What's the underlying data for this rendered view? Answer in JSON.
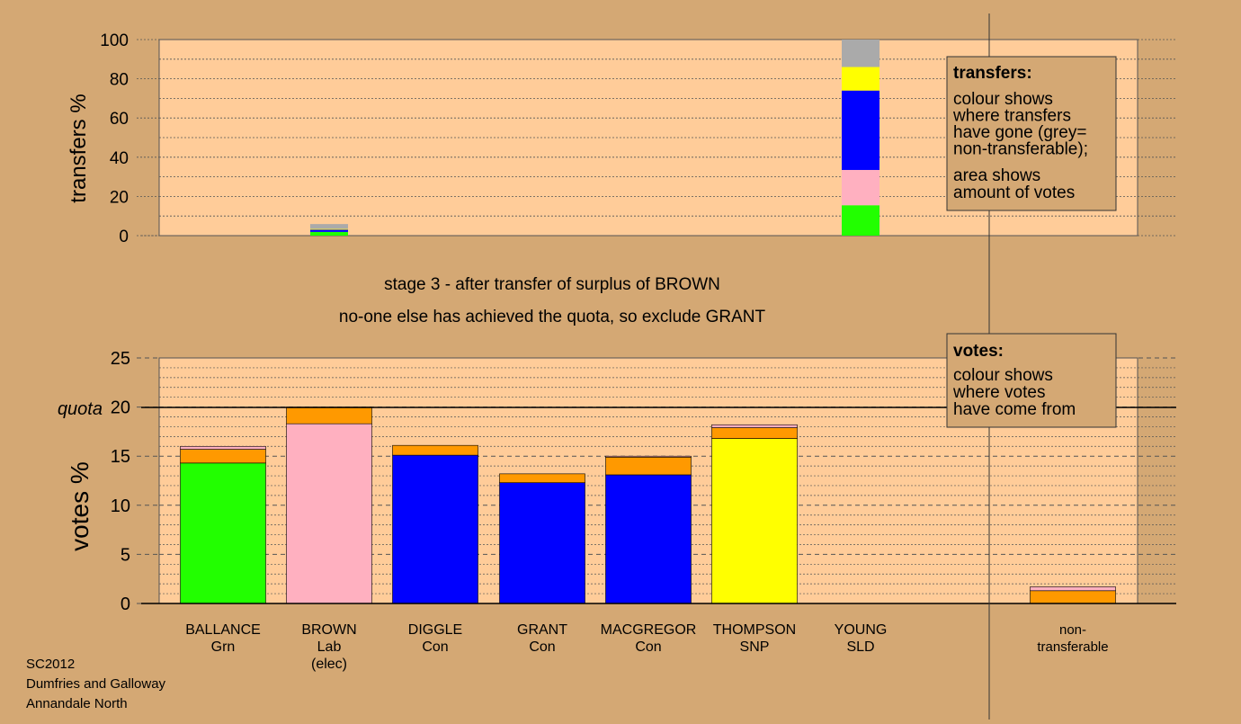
{
  "chart_data": [
    {
      "type": "bar",
      "name": "transfers",
      "ylabel": "transfers %",
      "ylim": [
        0,
        100
      ],
      "yticks": [
        0,
        20,
        40,
        60,
        80,
        100
      ],
      "categories": [
        "BALLANCE Grn",
        "BROWN Lab (elec)",
        "DIGGLE Con",
        "GRANT Con",
        "MACGREGOR Con",
        "THOMPSON SNP",
        "YOUNG SLD"
      ],
      "series_colors": {
        "Grn": "#22ff00",
        "Lab": "#ffb0c0",
        "Con": "#0000ff",
        "SNP": "#ffff00",
        "non-transferable": "#aaaaaa"
      },
      "stacks": [
        {
          "category": "BROWN Lab (elec)",
          "segments": [
            {
              "party": "Grn",
              "value": 1.9
            },
            {
              "party": "Con",
              "value": 1.1
            },
            {
              "party": "SNP",
              "value": 0.4
            },
            {
              "party": "non-transferable",
              "value": 2.5
            }
          ]
        },
        {
          "category": "YOUNG SLD",
          "segments": [
            {
              "party": "Grn",
              "value": 15.5
            },
            {
              "party": "Lab",
              "value": 18
            },
            {
              "party": "Con",
              "value": 40.5
            },
            {
              "party": "SNP",
              "value": 12
            },
            {
              "party": "non-transferable",
              "value": 14
            }
          ]
        }
      ]
    },
    {
      "type": "bar",
      "name": "votes",
      "ylabel": "votes %",
      "ylim": [
        0,
        25
      ],
      "yticks": [
        0,
        5,
        10,
        15,
        20,
        25
      ],
      "quota": 20,
      "quota_label": "quota",
      "categories": [
        "BALLANCE Grn",
        "BROWN Lab (elec)",
        "DIGGLE Con",
        "GRANT Con",
        "MACGREGOR Con",
        "THOMPSON SNP",
        "YOUNG SLD",
        "non-transferable"
      ],
      "stacks": [
        {
          "category": "BALLANCE Grn",
          "segments": [
            {
              "source": "first",
              "color": "#22ff00",
              "value": 14.3
            },
            {
              "source": "SLD",
              "color": "#ff9900",
              "value": 1.4
            },
            {
              "source": "Lab",
              "color": "#ffb0c0",
              "value": 0.3
            }
          ]
        },
        {
          "category": "BROWN Lab (elec)",
          "segments": [
            {
              "source": "first",
              "color": "#ffb0c0",
              "value": 18.3
            },
            {
              "source": "SLD",
              "color": "#ff9900",
              "value": 1.7
            }
          ]
        },
        {
          "category": "DIGGLE Con",
          "segments": [
            {
              "source": "first",
              "color": "#0000ff",
              "value": 15.1
            },
            {
              "source": "SLD",
              "color": "#ff9900",
              "value": 1.0
            }
          ]
        },
        {
          "category": "GRANT Con",
          "segments": [
            {
              "source": "first",
              "color": "#0000ff",
              "value": 12.3
            },
            {
              "source": "SLD",
              "color": "#ff9900",
              "value": 0.9
            }
          ]
        },
        {
          "category": "MACGREGOR Con",
          "segments": [
            {
              "source": "first",
              "color": "#0000ff",
              "value": 13.1
            },
            {
              "source": "SLD",
              "color": "#ff9900",
              "value": 1.8
            },
            {
              "source": "Lab",
              "color": "#ffb0c0",
              "value": 0.1
            }
          ]
        },
        {
          "category": "THOMPSON SNP",
          "segments": [
            {
              "source": "first",
              "color": "#ffff00",
              "value": 16.8
            },
            {
              "source": "SLD",
              "color": "#ff9900",
              "value": 1.1
            },
            {
              "source": "Lab",
              "color": "#ffb0c0",
              "value": 0.3
            }
          ]
        },
        {
          "category": "YOUNG SLD",
          "segments": []
        },
        {
          "category": "non-transferable",
          "segments": [
            {
              "source": "SLD",
              "color": "#ff9900",
              "value": 1.3
            },
            {
              "source": "Lab",
              "color": "#ffb0c0",
              "value": 0.4
            }
          ]
        }
      ]
    }
  ],
  "categories_text": [
    {
      "name": "BALLANCE",
      "party": "Grn",
      "note": ""
    },
    {
      "name": "BROWN",
      "party": "Lab",
      "note": "(elec)"
    },
    {
      "name": "DIGGLE",
      "party": "Con",
      "note": ""
    },
    {
      "name": "GRANT",
      "party": "Con",
      "note": ""
    },
    {
      "name": "MACGREGOR",
      "party": "Con",
      "note": ""
    },
    {
      "name": "THOMPSON",
      "party": "SNP",
      "note": ""
    },
    {
      "name": "YOUNG",
      "party": "SLD",
      "note": ""
    }
  ],
  "nontransferable_label": [
    "non-",
    "transferable"
  ],
  "stage_line1": "stage 3 - after transfer of surplus of BROWN",
  "stage_line2": "no-one else has achieved the quota, so exclude GRANT",
  "legend_transfers": {
    "title": "transfers:",
    "lines1": [
      "colour shows",
      "where transfers",
      "have gone (grey=",
      "non-transferable);"
    ],
    "lines2": [
      "area shows",
      "amount of votes"
    ]
  },
  "legend_votes": {
    "title": "votes:",
    "lines": [
      "colour shows",
      "where votes",
      "have come from"
    ]
  },
  "footer": [
    "SC2012",
    "Dumfries and Galloway",
    "Annandale North"
  ],
  "colors": {
    "background": "#d4a874",
    "plot_bg": "#ffcc99",
    "legend_bg": "#d4a874"
  }
}
